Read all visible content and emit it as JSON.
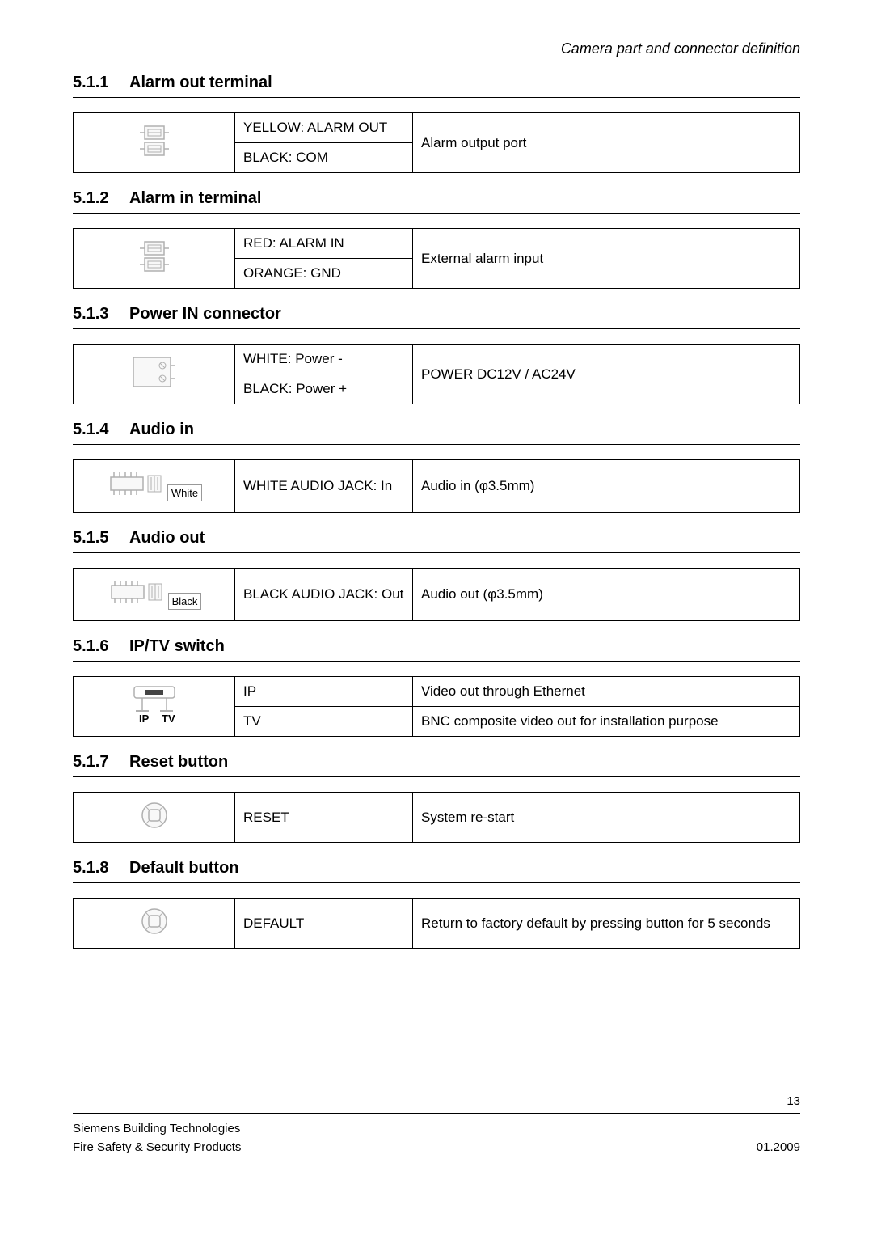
{
  "header": {
    "right": "Camera part and connector definition"
  },
  "sections": [
    {
      "num": "5.1.1",
      "title": "Alarm out terminal",
      "rows": [
        {
          "label": "YELLOW: ALARM OUT",
          "desc": "Alarm output port",
          "icon": "terminal2",
          "rowspanIcon": 2,
          "rowspanDesc": 2
        },
        {
          "label": "BLACK: COM"
        }
      ]
    },
    {
      "num": "5.1.2",
      "title": "Alarm in terminal",
      "rows": [
        {
          "label": "RED: ALARM IN",
          "desc": "External alarm input",
          "icon": "terminal2",
          "rowspanIcon": 2,
          "rowspanDesc": 2
        },
        {
          "label": "ORANGE: GND"
        }
      ]
    },
    {
      "num": "5.1.3",
      "title": "Power IN connector",
      "rows": [
        {
          "label": "WHITE: Power -",
          "desc": "POWER DC12V / AC24V",
          "icon": "powerblock",
          "rowspanIcon": 2,
          "rowspanDesc": 2
        },
        {
          "label": "BLACK: Power +"
        }
      ]
    },
    {
      "num": "5.1.4",
      "title": "Audio in",
      "rows": [
        {
          "label": "WHITE AUDIO JACK: In",
          "desc": "Audio in (φ3.5mm)",
          "icon": "audiojack",
          "iconLabel": "White"
        }
      ],
      "tall": true
    },
    {
      "num": "5.1.5",
      "title": "Audio out",
      "rows": [
        {
          "label": "BLACK AUDIO JACK: Out",
          "desc": "Audio out (φ3.5mm)",
          "icon": "audiojack",
          "iconLabel": "Black"
        }
      ],
      "tall": true
    },
    {
      "num": "5.1.6",
      "title": "IP/TV switch",
      "rows": [
        {
          "label": "IP",
          "desc": "Video out through Ethernet",
          "icon": "iptv",
          "rowspanIcon": 2
        },
        {
          "label": "TV",
          "desc": "BNC composite video out for installation purpose"
        }
      ]
    },
    {
      "num": "5.1.7",
      "title": "Reset button",
      "rows": [
        {
          "label": "RESET",
          "desc": "System re-start",
          "icon": "button"
        }
      ]
    },
    {
      "num": "5.1.8",
      "title": "Default button",
      "rows": [
        {
          "label": "DEFAULT",
          "desc": "Return to factory default by pressing button for 5 seconds",
          "icon": "button"
        }
      ]
    }
  ],
  "footer": {
    "page": "13",
    "left1": "Siemens Building Technologies",
    "left2": "Fire Safety & Security Products",
    "right2": "01.2009"
  },
  "colors": {
    "icon_stroke": "#b0b0b0",
    "icon_fill": "#f8f8f8"
  }
}
